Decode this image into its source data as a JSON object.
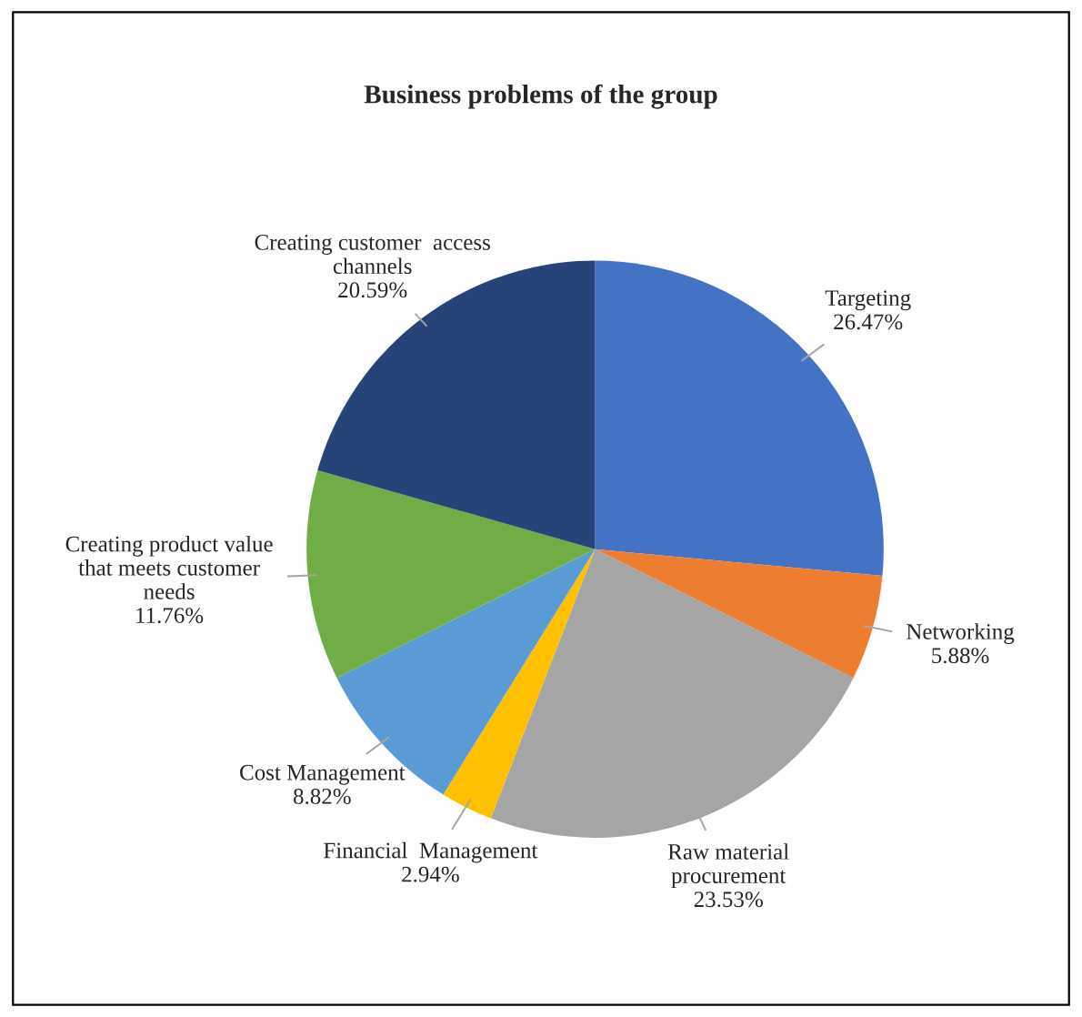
{
  "chart_data": {
    "type": "pie",
    "title": "Business problems of the group",
    "categories": [
      "Targeting",
      "Networking",
      "Raw material\nprocurement",
      "Financial  Management",
      "Cost Management",
      "Creating product value\nthat meets customer\nneeds",
      "Creating customer  access\nchannels"
    ],
    "values": [
      26.47,
      5.88,
      23.53,
      2.94,
      8.82,
      11.76,
      20.59
    ],
    "value_labels": [
      "26.47%",
      "5.88%",
      "23.53%",
      "2.94%",
      "8.82%",
      "11.76%",
      "20.59%"
    ],
    "colors": [
      "#4472c4",
      "#ed7d31",
      "#a5a5a5",
      "#ffc000",
      "#5b9bd5",
      "#70ad47",
      "#264478"
    ],
    "legend": false
  }
}
